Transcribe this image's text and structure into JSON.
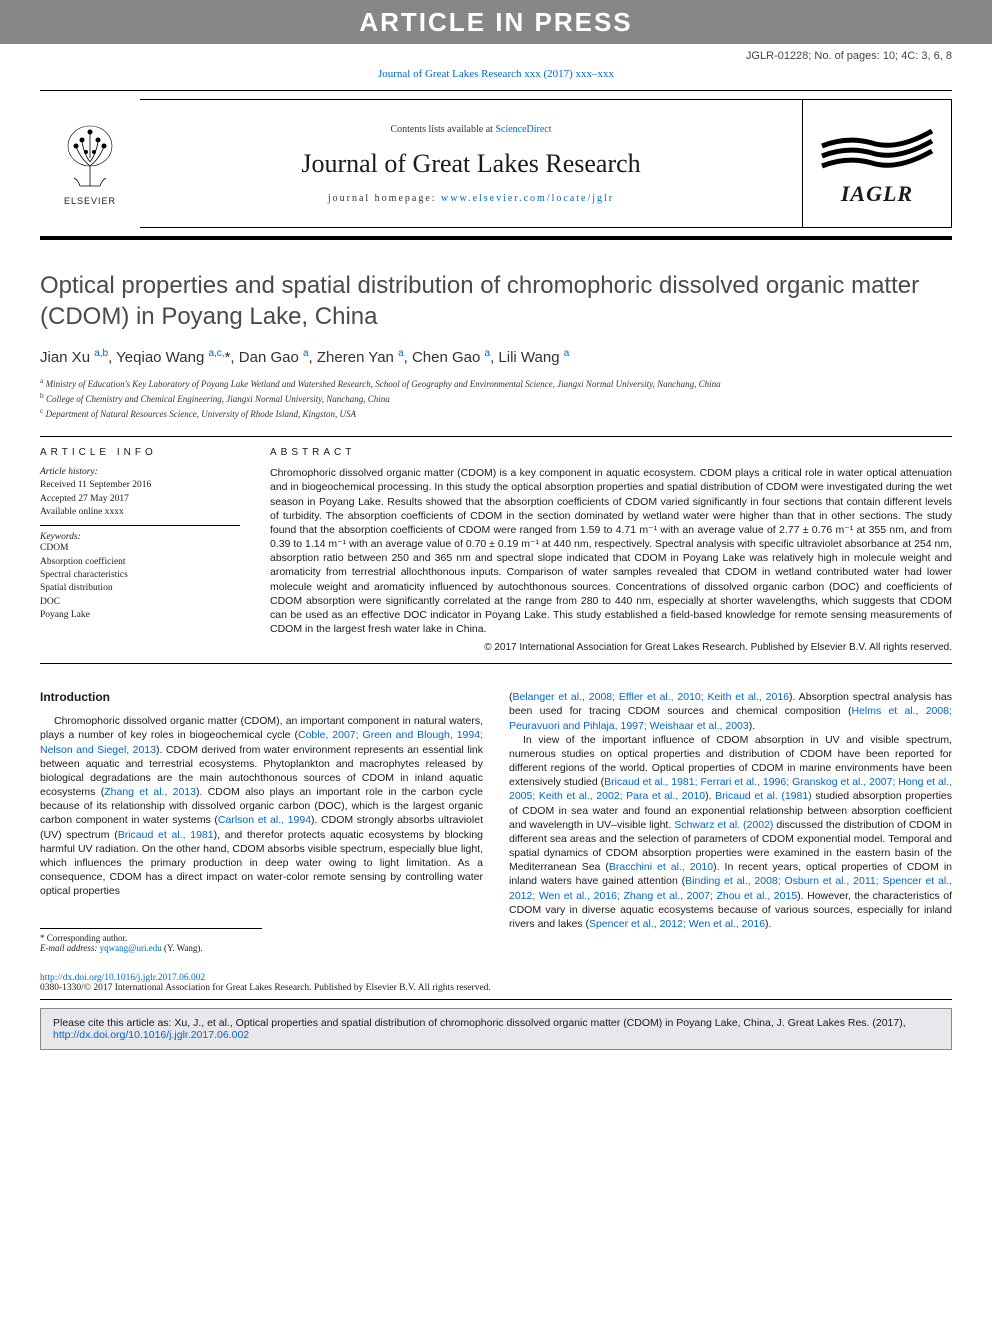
{
  "colors": {
    "banner_bg": "#878787",
    "banner_text": "#ffffff",
    "link": "#0066cc",
    "text": "#1a1a1a",
    "cite_bg": "#e8e8ec",
    "title_gray": "#4a4a4a"
  },
  "banner": {
    "text": "ARTICLE IN PRESS"
  },
  "article_id": "JGLR-01228; No. of pages: 10; 4C: 3, 6, 8",
  "journal_ref_top": "Journal of Great Lakes Research xxx (2017) xxx–xxx",
  "publisher": {
    "name": "ELSEVIER"
  },
  "header": {
    "contents_prefix": "Contents lists available at ",
    "contents_link": "ScienceDirect",
    "journal_name": "Journal of Great Lakes Research",
    "homepage_prefix": "journal homepage: ",
    "homepage_url": "www.elsevier.com/locate/jglr"
  },
  "society": {
    "name": "IAGLR"
  },
  "title": "Optical properties and spatial distribution of chromophoric dissolved organic matter (CDOM) in Poyang Lake, China",
  "authors_html": "Jian Xu <sup>a,b</sup>, Yeqiao Wang <sup>a,c,</sup>*, Dan Gao <sup>a</sup>, Zheren Yan <sup>a</sup>, Chen Gao <sup>a</sup>, Lili Wang <sup>a</sup>",
  "affiliations": [
    {
      "sup": "a",
      "text": "Ministry of Education's Key Laboratory of Poyang Lake Wetland and Watershed Research, School of Geography and Environmental Science, Jiangxi Normal University, Nanchang, China"
    },
    {
      "sup": "b",
      "text": "College of Chemistry and Chemical Engineering, Jiangxi Normal University, Nanchang, China"
    },
    {
      "sup": "c",
      "text": "Department of Natural Resources Science, University of Rhode Island, Kingston, USA"
    }
  ],
  "article_info": {
    "heading": "article info",
    "history_label": "Article history:",
    "received": "Received 11 September 2016",
    "accepted": "Accepted 27 May 2017",
    "available": "Available online xxxx",
    "keywords_label": "Keywords:",
    "keywords": [
      "CDOM",
      "Absorption coefficient",
      "Spectral characteristics",
      "Spatial distribution",
      "DOC",
      "Poyang Lake"
    ]
  },
  "abstract": {
    "heading": "abstract",
    "text": "Chromophoric dissolved organic matter (CDOM) is a key component in aquatic ecosystem. CDOM plays a critical role in water optical attenuation and in biogeochemical processing. In this study the optical absorption properties and spatial distribution of CDOM were investigated during the wet season in Poyang Lake. Results showed that the absorption coefficients of CDOM varied significantly in four sections that contain different levels of turbidity. The absorption coefficients of CDOM in the section dominated by wetland water were higher than that in other sections. The study found that the absorption coefficients of CDOM were ranged from 1.59 to 4.71 m⁻¹ with an average value of 2.77 ± 0.76 m⁻¹ at 355 nm, and from 0.39 to 1.14 m⁻¹ with an average value of 0.70 ± 0.19 m⁻¹ at 440 nm, respectively. Spectral analysis with specific ultraviolet absorbance at 254 nm, absorption ratio between 250 and 365 nm and spectral slope indicated that CDOM in Poyang Lake was relatively high in molecule weight and aromaticity from terrestrial allochthonous inputs. Comparison of water samples revealed that CDOM in wetland contributed water had lower molecule weight and aromaticity influenced by autochthonous sources. Concentrations of dissolved organic carbon (DOC) and coefficients of CDOM absorption were significantly correlated at the range from 280 to 440 nm, especially at shorter wavelengths, which suggests that CDOM can be used as an effective DOC indicator in Poyang Lake. This study established a field-based knowledge for remote sensing measurements of CDOM in the largest fresh water lake in China.",
    "copyright": "© 2017 International Association for Great Lakes Research. Published by Elsevier B.V. All rights reserved."
  },
  "introduction": {
    "heading": "Introduction",
    "col1_html": "Chromophoric dissolved organic matter (CDOM), an important component in natural waters, plays a number of key roles in biogeochemical cycle (<a>Coble, 2007; Green and Blough, 1994; Nelson and Siegel, 2013</a>). CDOM derived from water environment represents an essential link between aquatic and terrestrial ecosystems. Phytoplankton and macrophytes released by biological degradations are the main autochthonous sources of CDOM in inland aquatic ecosystems (<a>Zhang et al., 2013</a>). CDOM also plays an important role in the carbon cycle because of its relationship with dissolved organic carbon (DOC), which is the largest organic carbon component in water systems (<a>Carlson et al., 1994</a>). CDOM strongly absorbs ultraviolet (UV) spectrum (<a>Bricaud et al., 1981</a>), and therefor protects aquatic ecosystems by blocking harmful UV radiation. On the other hand, CDOM absorbs visible spectrum, especially blue light, which influences the primary production in deep water owing to light limitation. As a consequence, CDOM has a direct impact on water-color remote sensing by controlling water optical properties",
    "col2_p1_html": "(<a>Belanger et al., 2008; Effler et al., 2010; Keith et al., 2016</a>). Absorption spectral analysis has been used for tracing CDOM sources and chemical composition (<a>Helms et al., 2008; Peuravuori and Pihlaja, 1997; Weishaar et al., 2003</a>).",
    "col2_p2_html": "In view of the important influence of CDOM absorption in UV and visible spectrum, numerous studies on optical properties and distribution of CDOM have been reported for different regions of the world. Optical properties of CDOM in marine environments have been extensively studied (<a>Bricaud et al., 1981; Ferrari et al., 1996; Granskog et al., 2007; Hong et al., 2005; Keith et al., 2002; Para et al., 2010</a>). <a>Bricaud et al. (1981)</a> studied absorption properties of CDOM in sea water and found an exponential relationship between absorption coefficient and wavelength in UV–visible light. <a>Schwarz et al. (2002)</a> discussed the distribution of CDOM in different sea areas and the selection of parameters of CDOM exponential model. Temporal and spatial dynamics of CDOM absorption properties were examined in the eastern basin of the Mediterranean Sea (<a>Bracchini et al., 2010</a>). In recent years, optical properties of CDOM in inland waters have gained attention (<a>Binding et al., 2008; Osburn et al., 2011; Spencer et al., 2012; Wen et al., 2016; Zhang et al., 2007; Zhou et al., 2015</a>). However, the characteristics of CDOM vary in diverse aquatic ecosystems because of various sources, especially for inland rivers and lakes (<a>Spencer et al., 2012; Wen et al., 2016</a>)."
  },
  "corresponding": {
    "label": "* Corresponding author.",
    "email_label": "E-mail address:",
    "email": "yqwang@uri.edu",
    "person": "(Y. Wang)."
  },
  "footer": {
    "doi": "http://dx.doi.org/10.1016/j.jglr.2017.06.002",
    "copy": "0380-1330/© 2017 International Association for Great Lakes Research. Published by Elsevier B.V. All rights reserved."
  },
  "cite_box": {
    "text_prefix": "Please cite this article as: Xu, J., et al., Optical properties and spatial distribution of chromophoric dissolved organic matter (CDOM) in Poyang Lake, China, J. Great Lakes Res. (2017), ",
    "link": "http://dx.doi.org/10.1016/j.jglr.2017.06.002"
  }
}
